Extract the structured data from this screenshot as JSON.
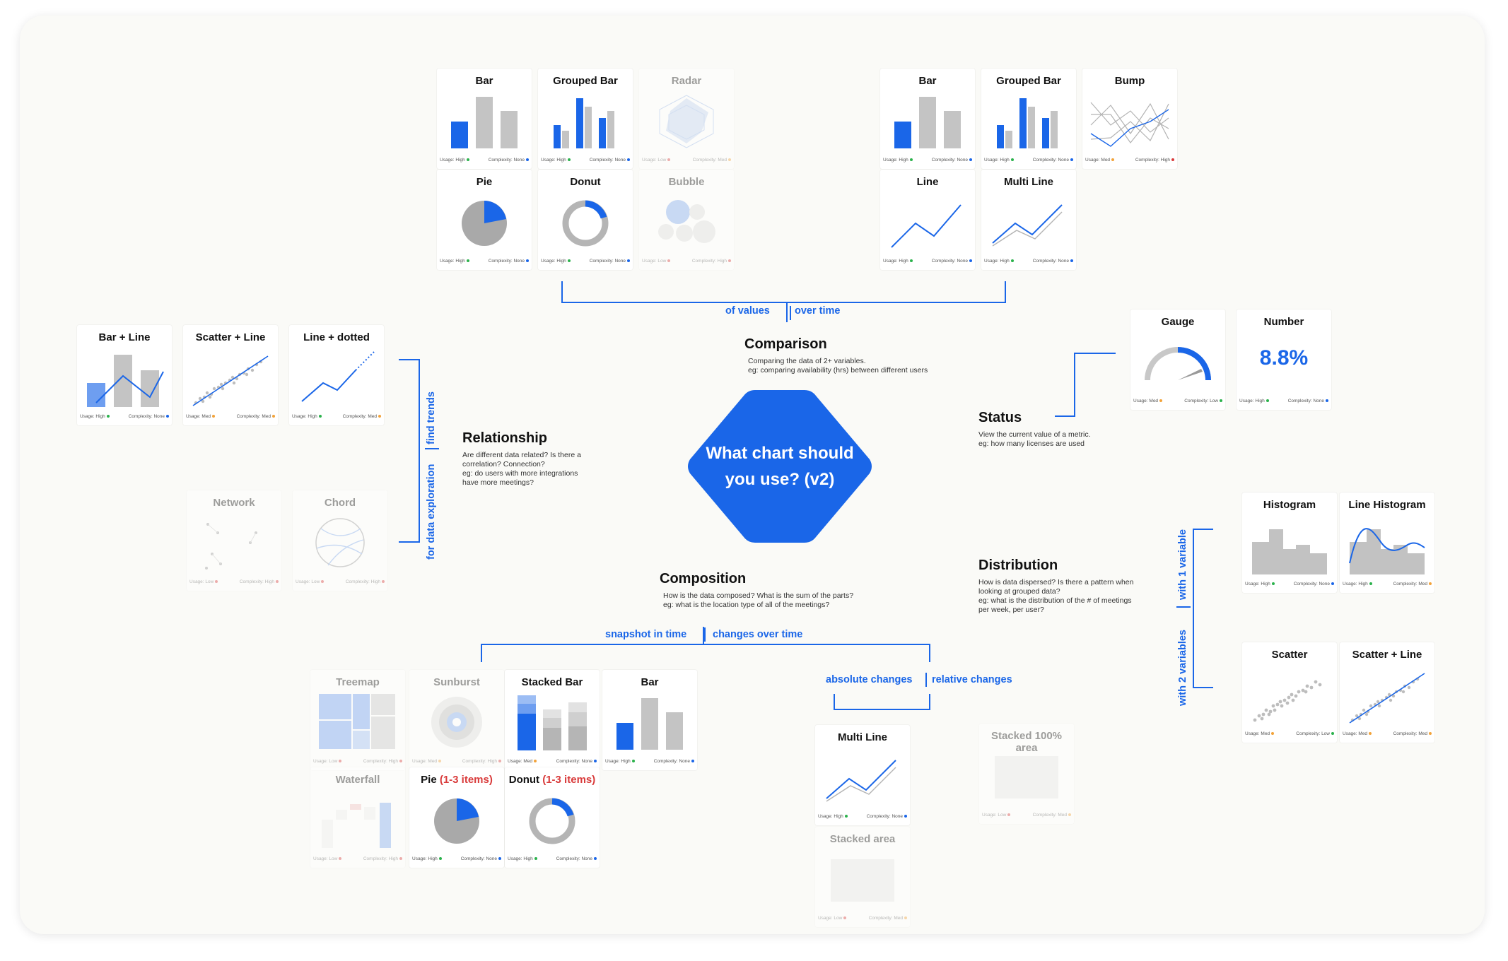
{
  "center": {
    "line1": "What chart should",
    "line2": "you use? (v2)"
  },
  "colors": {
    "accent": "#1a66e8",
    "gray": "#c4c4c4",
    "red": "#d93b3b",
    "green": "#2bb24c",
    "orange": "#f2a33a",
    "blue": "#1a66e8"
  },
  "topics": {
    "comparison": {
      "title": "Comparison",
      "desc1": "Comparing the data of 2+ variables.",
      "desc2": "eg: comparing availability (hrs) between different users"
    },
    "relationship": {
      "title": "Relationship",
      "desc1": "Are different data related? Is there a",
      "desc2": "correlation? Connection?",
      "desc3": "eg: do users with more integrations",
      "desc4": "have more meetings?"
    },
    "status": {
      "title": "Status",
      "desc1": "View the current value of a metric.",
      "desc2": "eg: how many licenses are used"
    },
    "composition": {
      "title": "Composition",
      "desc1": "How is the data composed? What is the sum of the parts?",
      "desc2": "eg: what is the location type of all of the meetings?"
    },
    "distribution": {
      "title": "Distribution",
      "desc1": "How is data dispersed? Is there a pattern when",
      "desc2": "looking at grouped data?",
      "desc3": "eg: what is the distribution of the # of meetings",
      "desc4": "per week, per user?"
    }
  },
  "branches": {
    "of_values": "of values",
    "over_time": "over time",
    "find_trends": "find trends",
    "data_exploration": "for data exploration",
    "snapshot": "snapshot in time",
    "changes_over_time": "changes over time",
    "absolute": "absolute changes",
    "relative": "relative changes",
    "one_var": "with 1 variable",
    "two_var": "with 2 variables"
  },
  "cards": [
    {
      "id": "cmp-bar",
      "title": "Bar",
      "viz": "bar",
      "faded": false,
      "usage": "High",
      "uc": "green",
      "complexity": "None",
      "cc": "blue"
    },
    {
      "id": "cmp-grouped",
      "title": "Grouped Bar",
      "viz": "grouped",
      "faded": false,
      "usage": "High",
      "uc": "green",
      "complexity": "None",
      "cc": "blue"
    },
    {
      "id": "cmp-radar",
      "title": "Radar",
      "viz": "radar",
      "faded": true,
      "usage": "Low",
      "uc": "red",
      "complexity": "Med",
      "cc": "orange"
    },
    {
      "id": "cmp-pie",
      "title": "Pie",
      "viz": "pie",
      "faded": false,
      "usage": "High",
      "uc": "green",
      "complexity": "None",
      "cc": "blue"
    },
    {
      "id": "cmp-donut",
      "title": "Donut",
      "viz": "donut",
      "faded": false,
      "usage": "High",
      "uc": "green",
      "complexity": "None",
      "cc": "blue"
    },
    {
      "id": "cmp-bubble",
      "title": "Bubble",
      "viz": "bubble",
      "faded": true,
      "usage": "Low",
      "uc": "red",
      "complexity": "High",
      "cc": "red"
    },
    {
      "id": "time-bar",
      "title": "Bar",
      "viz": "bar",
      "faded": false,
      "usage": "High",
      "uc": "green",
      "complexity": "None",
      "cc": "blue"
    },
    {
      "id": "time-grouped",
      "title": "Grouped Bar",
      "viz": "grouped",
      "faded": false,
      "usage": "High",
      "uc": "green",
      "complexity": "None",
      "cc": "blue"
    },
    {
      "id": "time-bump",
      "title": "Bump",
      "viz": "bump",
      "faded": false,
      "usage": "Med",
      "uc": "orange",
      "complexity": "High",
      "cc": "red"
    },
    {
      "id": "time-line",
      "title": "Line",
      "viz": "line",
      "faded": false,
      "usage": "High",
      "uc": "green",
      "complexity": "None",
      "cc": "blue"
    },
    {
      "id": "time-multiline",
      "title": "Multi Line",
      "viz": "multiline",
      "faded": false,
      "usage": "High",
      "uc": "green",
      "complexity": "None",
      "cc": "blue"
    },
    {
      "id": "rel-barline",
      "title": "Bar + Line",
      "viz": "barline",
      "faded": false,
      "usage": "High",
      "uc": "green",
      "complexity": "None",
      "cc": "blue"
    },
    {
      "id": "rel-scatterline",
      "title": "Scatter + Line",
      "viz": "scatterline",
      "faded": false,
      "usage": "Med",
      "uc": "orange",
      "complexity": "Med",
      "cc": "orange"
    },
    {
      "id": "rel-linedotted",
      "title": "Line + dotted",
      "viz": "linedotted",
      "faded": false,
      "usage": "High",
      "uc": "green",
      "complexity": "Med",
      "cc": "orange"
    },
    {
      "id": "rel-network",
      "title": "Network",
      "viz": "network",
      "faded": true,
      "usage": "Low",
      "uc": "red",
      "complexity": "High",
      "cc": "red"
    },
    {
      "id": "rel-chord",
      "title": "Chord",
      "viz": "chord",
      "faded": true,
      "usage": "Low",
      "uc": "red",
      "complexity": "High",
      "cc": "red"
    },
    {
      "id": "st-gauge",
      "title": "Gauge",
      "viz": "gauge",
      "faded": false,
      "usage": "Med",
      "uc": "orange",
      "complexity": "Low",
      "cc": "green"
    },
    {
      "id": "st-number",
      "title": "Number",
      "viz": "number",
      "number": "8.8%",
      "faded": false,
      "usage": "High",
      "uc": "green",
      "complexity": "None",
      "cc": "blue"
    },
    {
      "id": "comp-treemap",
      "title": "Treemap",
      "viz": "treemap",
      "faded": true,
      "usage": "Low",
      "uc": "red",
      "complexity": "High",
      "cc": "red"
    },
    {
      "id": "comp-sunburst",
      "title": "Sunburst",
      "viz": "sunburst",
      "faded": true,
      "usage": "Med",
      "uc": "orange",
      "complexity": "High",
      "cc": "red"
    },
    {
      "id": "comp-stacked",
      "title": "Stacked Bar",
      "viz": "stacked",
      "faded": false,
      "usage": "Med",
      "uc": "orange",
      "complexity": "None",
      "cc": "blue"
    },
    {
      "id": "comp-bar",
      "title": "Bar",
      "viz": "bar",
      "faded": false,
      "usage": "High",
      "uc": "green",
      "complexity": "None",
      "cc": "blue"
    },
    {
      "id": "comp-waterfall",
      "title": "Waterfall",
      "viz": "waterfall",
      "faded": true,
      "usage": "Low",
      "uc": "red",
      "complexity": "High",
      "cc": "red"
    },
    {
      "id": "comp-pie",
      "title": "Pie ",
      "title_red": "(1-3 items)",
      "viz": "pie",
      "faded": false,
      "usage": "High",
      "uc": "green",
      "complexity": "None",
      "cc": "blue"
    },
    {
      "id": "comp-donut",
      "title": "Donut ",
      "title_red": "(1-3 items)",
      "viz": "donut",
      "faded": false,
      "usage": "High",
      "uc": "green",
      "complexity": "None",
      "cc": "blue"
    },
    {
      "id": "comp-multiline",
      "title": "Multi Line",
      "viz": "multiline",
      "faded": false,
      "usage": "High",
      "uc": "green",
      "complexity": "None",
      "cc": "blue"
    },
    {
      "id": "comp-stacked100",
      "title": "Stacked 100% area",
      "viz": "blank",
      "faded": true,
      "usage": "Low",
      "uc": "red",
      "complexity": "Med",
      "cc": "orange"
    },
    {
      "id": "comp-stackedarea",
      "title": "Stacked area",
      "viz": "blank",
      "faded": true,
      "usage": "Low",
      "uc": "red",
      "complexity": "Med",
      "cc": "orange"
    },
    {
      "id": "dist-histogram",
      "title": "Histogram",
      "viz": "histogram",
      "faded": false,
      "usage": "High",
      "uc": "green",
      "complexity": "None",
      "cc": "blue"
    },
    {
      "id": "dist-linehist",
      "title": "Line Histogram",
      "viz": "linehist",
      "faded": false,
      "usage": "High",
      "uc": "green",
      "complexity": "Med",
      "cc": "orange"
    },
    {
      "id": "dist-scatter",
      "title": "Scatter",
      "viz": "scatter",
      "faded": false,
      "usage": "Med",
      "uc": "orange",
      "complexity": "Low",
      "cc": "green"
    },
    {
      "id": "dist-scatterline",
      "title": "Scatter + Line",
      "viz": "scatterline",
      "faded": false,
      "usage": "Med",
      "uc": "orange",
      "complexity": "Med",
      "cc": "orange"
    }
  ]
}
